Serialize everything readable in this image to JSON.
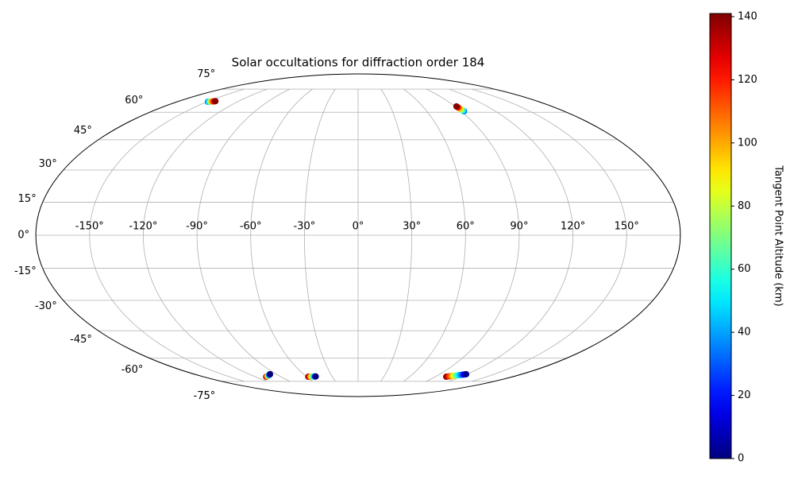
{
  "chart_data": {
    "type": "scatter",
    "projection": "mollweide",
    "title": "Solar occultations for diffraction order 184",
    "xlim": [
      -180,
      180
    ],
    "ylim": [
      -90,
      90
    ],
    "xticks": [
      {
        "value": -150,
        "label": "-150°"
      },
      {
        "value": -120,
        "label": "-120°"
      },
      {
        "value": -90,
        "label": "-90°"
      },
      {
        "value": -60,
        "label": "-60°"
      },
      {
        "value": -30,
        "label": "-30°"
      },
      {
        "value": 0,
        "label": "0°"
      },
      {
        "value": 30,
        "label": "30°"
      },
      {
        "value": 60,
        "label": "60°"
      },
      {
        "value": 90,
        "label": "90°"
      },
      {
        "value": 120,
        "label": "120°"
      },
      {
        "value": 150,
        "label": "150°"
      }
    ],
    "yticks": [
      {
        "value": -75,
        "label": "-75°"
      },
      {
        "value": -60,
        "label": "-60°"
      },
      {
        "value": -45,
        "label": "-45°"
      },
      {
        "value": -30,
        "label": "-30°"
      },
      {
        "value": -15,
        "label": "-15°"
      },
      {
        "value": 0,
        "label": "0°"
      },
      {
        "value": 15,
        "label": "15°"
      },
      {
        "value": 30,
        "label": "30°"
      },
      {
        "value": 45,
        "label": "45°"
      },
      {
        "value": 60,
        "label": "60°"
      },
      {
        "value": 75,
        "label": "75°"
      }
    ],
    "grid": true,
    "colorbar": {
      "label": "Tangent Point Altitude (km)",
      "colormap": "jet",
      "clim": [
        0,
        141
      ],
      "ticks": [
        0,
        20,
        40,
        60,
        80,
        100,
        120,
        140
      ]
    },
    "x": [
      -149.5,
      -149,
      -148,
      -147,
      -146,
      -145,
      -144,
      -143.5,
      92.5,
      92.3,
      92.1,
      92,
      91.8,
      91.6,
      91.5,
      91.3,
      -107,
      -105.5,
      -104,
      -102.5,
      -101,
      -99.5,
      -98,
      -97,
      -58,
      -56.5,
      -55,
      -53.5,
      -52,
      -50.5,
      -49.5,
      -49,
      102.6,
      104,
      105.5,
      107,
      108.5,
      110,
      111.5,
      113,
      114.5,
      116,
      117.5,
      119
    ],
    "y": [
      66.4,
      66.4,
      66.5,
      66.5,
      66.6,
      66.6,
      66.7,
      66.8,
      60.6,
      61,
      61.4,
      61.8,
      62.3,
      62.7,
      63.1,
      63.5,
      -71.7,
      -71.5,
      -71.3,
      -71,
      -70.8,
      -70.5,
      -70.2,
      -70,
      -71.7,
      -71.7,
      -71.6,
      -71.6,
      -71.6,
      -71.5,
      -71.5,
      -71.5,
      -71.7,
      -71.5,
      -71.4,
      -71.2,
      -71.1,
      -70.9,
      -70.8,
      -70.6,
      -70.5,
      -70.3,
      -70.2,
      -70
    ],
    "c": [
      30,
      45,
      60,
      80,
      100,
      115,
      130,
      140,
      35,
      50,
      65,
      80,
      95,
      110,
      125,
      140,
      140,
      120,
      100,
      80,
      60,
      40,
      20,
      0,
      140,
      120,
      100,
      80,
      60,
      40,
      20,
      0,
      140,
      128,
      115,
      103,
      90,
      78,
      65,
      52,
      40,
      27,
      14,
      2
    ]
  }
}
